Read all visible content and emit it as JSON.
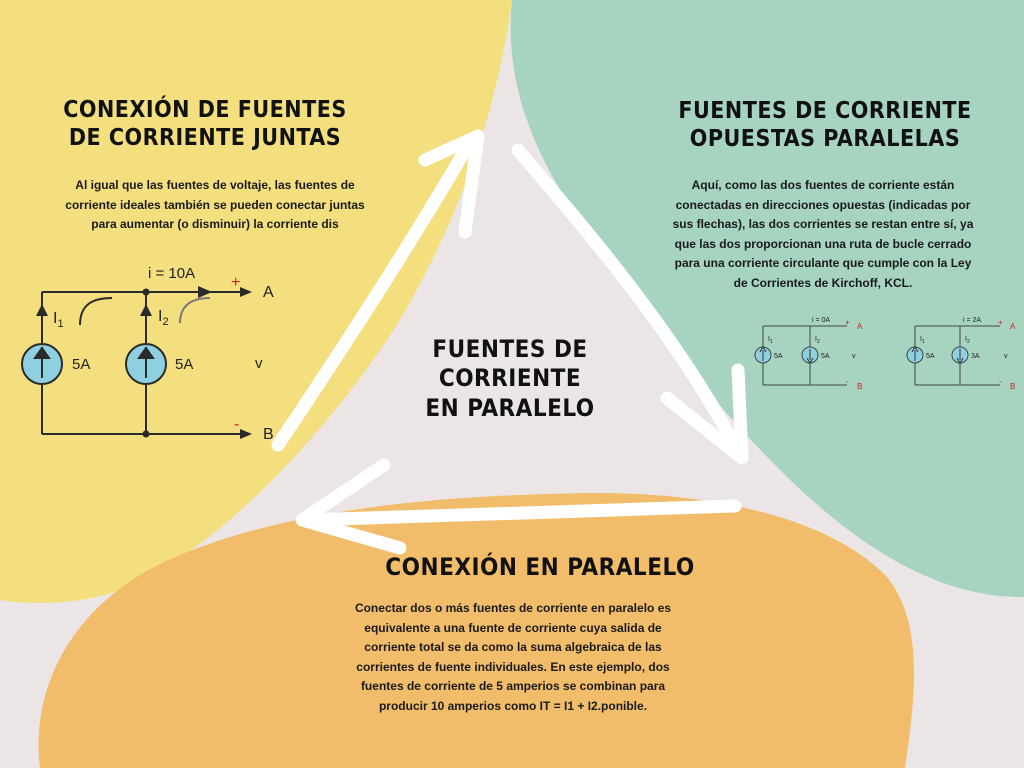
{
  "center": {
    "title": "FUENTES DE CORRIENTE EN PARALELO"
  },
  "left_section": {
    "title": "CONEXIÓN DE FUENTES DE CORRIENTE JUNTAS",
    "text": "Al igual que las fuentes de voltaje, las fuentes de corriente ideales también se pueden conectar juntas para aumentar (o disminuir) la corriente dis",
    "circuit": {
      "total_label": "i = 10A",
      "node_a": "A",
      "node_b": "B",
      "plus": "+",
      "minus": "-",
      "v_label": "v",
      "sources": [
        {
          "name": "I",
          "sub": "1",
          "value": "5A"
        },
        {
          "name": "I",
          "sub": "2",
          "value": "5A"
        }
      ]
    }
  },
  "right_section": {
    "title": "FUENTES DE CORRIENTE OPUESTAS PARALELAS",
    "text": "Aquí, como las dos fuentes de corriente están conectadas en direcciones opuestas (indicadas por sus flechas), las dos corrientes se restan entre sí, ya que las dos proporcionan una ruta de bucle cerrado para una corriente circulante que cumple con la Ley de Corrientes de Kirchoff, KCL.",
    "circuits": [
      {
        "total_label": "i = 0A",
        "node_a": "A",
        "node_b": "B",
        "plus": "+",
        "minus": "-",
        "v_label": "v",
        "sources": [
          {
            "name": "I",
            "sub": "1",
            "value": "5A",
            "direction": "up"
          },
          {
            "name": "I",
            "sub": "2",
            "value": "5A",
            "direction": "down"
          }
        ]
      },
      {
        "total_label": "i = 2A",
        "node_a": "A",
        "node_b": "B",
        "plus": "+",
        "minus": "-",
        "v_label": "v",
        "sources": [
          {
            "name": "I",
            "sub": "1",
            "value": "5A",
            "direction": "up"
          },
          {
            "name": "I",
            "sub": "2",
            "value": "3A",
            "direction": "down"
          }
        ]
      }
    ]
  },
  "bottom_section": {
    "title": "CONEXIÓN EN PARALELO",
    "text": "Conectar dos o más fuentes de corriente en paralelo es equivalente a una fuente de corriente cuya salida de corriente total se da como la suma algebraica de las corrientes de fuente individuales. En este ejemplo, dos fuentes de corriente de 5 amperios se combinan para producir 10 amperios como IT = I1 + I2.ponible."
  },
  "colors": {
    "background": "#ece5e6",
    "yellow": "#f3df7e",
    "green": "#a6d4c0",
    "orange": "#f2bd6a",
    "source_fill": "#8ecfe0",
    "arrows": "#ffffff"
  }
}
